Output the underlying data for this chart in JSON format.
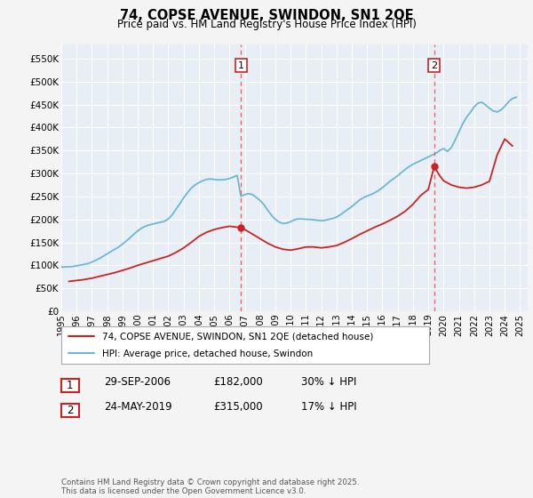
{
  "title": "74, COPSE AVENUE, SWINDON, SN1 2QE",
  "subtitle": "Price paid vs. HM Land Registry's House Price Index (HPI)",
  "ylabel_ticks": [
    "£0",
    "£50K",
    "£100K",
    "£150K",
    "£200K",
    "£250K",
    "£300K",
    "£350K",
    "£400K",
    "£450K",
    "£500K",
    "£550K"
  ],
  "ytick_values": [
    0,
    50000,
    100000,
    150000,
    200000,
    250000,
    300000,
    350000,
    400000,
    450000,
    500000,
    550000
  ],
  "ylim": [
    0,
    580000
  ],
  "xlim_start": 1995.0,
  "xlim_end": 2025.5,
  "xticks": [
    1995,
    1996,
    1997,
    1998,
    1999,
    2000,
    2001,
    2002,
    2003,
    2004,
    2005,
    2006,
    2007,
    2008,
    2009,
    2010,
    2011,
    2012,
    2013,
    2014,
    2015,
    2016,
    2017,
    2018,
    2019,
    2020,
    2021,
    2022,
    2023,
    2024,
    2025
  ],
  "hpi_color": "#6BB8D4",
  "property_color": "#CC2222",
  "vline_color": "#FF5555",
  "background_color": "#F4F4F4",
  "plot_bg_color": "#E8EEF5",
  "grid_color": "#FFFFFF",
  "marker1_date": 2006.75,
  "marker2_date": 2019.38,
  "legend_line1": "74, COPSE AVENUE, SWINDON, SN1 2QE (detached house)",
  "legend_line2": "HPI: Average price, detached house, Swindon",
  "table_row1": [
    "1",
    "29-SEP-2006",
    "£182,000",
    "30% ↓ HPI"
  ],
  "table_row2": [
    "2",
    "24-MAY-2019",
    "£315,000",
    "17% ↓ HPI"
  ],
  "footer": "Contains HM Land Registry data © Crown copyright and database right 2025.\nThis data is licensed under the Open Government Licence v3.0.",
  "hpi_data_x": [
    1995.0,
    1995.25,
    1995.5,
    1995.75,
    1996.0,
    1996.25,
    1996.5,
    1996.75,
    1997.0,
    1997.25,
    1997.5,
    1997.75,
    1998.0,
    1998.25,
    1998.5,
    1998.75,
    1999.0,
    1999.25,
    1999.5,
    1999.75,
    2000.0,
    2000.25,
    2000.5,
    2000.75,
    2001.0,
    2001.25,
    2001.5,
    2001.75,
    2002.0,
    2002.25,
    2002.5,
    2002.75,
    2003.0,
    2003.25,
    2003.5,
    2003.75,
    2004.0,
    2004.25,
    2004.5,
    2004.75,
    2005.0,
    2005.25,
    2005.5,
    2005.75,
    2006.0,
    2006.25,
    2006.5,
    2006.75,
    2007.0,
    2007.25,
    2007.5,
    2007.75,
    2008.0,
    2008.25,
    2008.5,
    2008.75,
    2009.0,
    2009.25,
    2009.5,
    2009.75,
    2010.0,
    2010.25,
    2010.5,
    2010.75,
    2011.0,
    2011.25,
    2011.5,
    2011.75,
    2012.0,
    2012.25,
    2012.5,
    2012.75,
    2013.0,
    2013.25,
    2013.5,
    2013.75,
    2014.0,
    2014.25,
    2014.5,
    2014.75,
    2015.0,
    2015.25,
    2015.5,
    2015.75,
    2016.0,
    2016.25,
    2016.5,
    2016.75,
    2017.0,
    2017.25,
    2017.5,
    2017.75,
    2018.0,
    2018.25,
    2018.5,
    2018.75,
    2019.0,
    2019.25,
    2019.5,
    2019.75,
    2020.0,
    2020.25,
    2020.5,
    2020.75,
    2021.0,
    2021.25,
    2021.5,
    2021.75,
    2022.0,
    2022.25,
    2022.5,
    2022.75,
    2023.0,
    2023.25,
    2023.5,
    2023.75,
    2024.0,
    2024.25,
    2024.5,
    2024.75
  ],
  "hpi_data_y": [
    96000,
    96500,
    97000,
    97500,
    99000,
    100500,
    102000,
    104000,
    107000,
    111000,
    115000,
    120000,
    125000,
    130000,
    135000,
    140000,
    146000,
    153000,
    160000,
    168000,
    175000,
    181000,
    185000,
    188000,
    190000,
    192000,
    194000,
    196000,
    201000,
    210000,
    222000,
    234000,
    247000,
    258000,
    268000,
    275000,
    280000,
    284000,
    287000,
    288000,
    287000,
    286000,
    286000,
    287000,
    289000,
    292000,
    296000,
    250000,
    254000,
    256000,
    254000,
    248000,
    241000,
    232000,
    220000,
    209000,
    200000,
    194000,
    191000,
    192000,
    195000,
    199000,
    201000,
    201000,
    200000,
    200000,
    199000,
    198000,
    197000,
    198000,
    200000,
    202000,
    205000,
    210000,
    216000,
    222000,
    228000,
    235000,
    242000,
    247000,
    251000,
    254000,
    258000,
    263000,
    269000,
    276000,
    283000,
    289000,
    295000,
    302000,
    309000,
    315000,
    320000,
    324000,
    328000,
    332000,
    336000,
    340000,
    344000,
    350000,
    354000,
    348000,
    356000,
    372000,
    390000,
    408000,
    422000,
    433000,
    445000,
    453000,
    455000,
    449000,
    442000,
    436000,
    434000,
    438000,
    446000,
    456000,
    463000,
    466000
  ],
  "property_data_x": [
    1995.5,
    1996.0,
    1996.5,
    1997.0,
    1997.5,
    1998.0,
    1998.5,
    1999.0,
    1999.5,
    2000.0,
    2000.5,
    2001.0,
    2001.5,
    2002.0,
    2002.5,
    2003.0,
    2003.5,
    2004.0,
    2004.5,
    2005.0,
    2005.5,
    2006.0,
    2006.5,
    2006.75,
    2007.0,
    2007.5,
    2008.0,
    2008.5,
    2009.0,
    2009.5,
    2010.0,
    2010.5,
    2011.0,
    2011.5,
    2012.0,
    2012.5,
    2013.0,
    2013.5,
    2014.0,
    2014.5,
    2015.0,
    2015.5,
    2016.0,
    2016.5,
    2017.0,
    2017.5,
    2018.0,
    2018.5,
    2019.0,
    2019.38,
    2019.75,
    2020.0,
    2020.5,
    2021.0,
    2021.5,
    2022.0,
    2022.5,
    2023.0,
    2023.5,
    2024.0,
    2024.5
  ],
  "property_data_y": [
    65000,
    67000,
    69000,
    72000,
    76000,
    80000,
    84000,
    89000,
    94000,
    100000,
    105000,
    110000,
    115000,
    120000,
    128000,
    138000,
    150000,
    163000,
    172000,
    178000,
    182000,
    185000,
    183000,
    182000,
    178000,
    168000,
    158000,
    148000,
    140000,
    135000,
    133000,
    136000,
    140000,
    140000,
    138000,
    140000,
    143000,
    150000,
    158000,
    167000,
    175000,
    183000,
    190000,
    198000,
    207000,
    218000,
    233000,
    252000,
    265000,
    315000,
    295000,
    284000,
    275000,
    270000,
    268000,
    270000,
    275000,
    283000,
    340000,
    375000,
    360000
  ]
}
